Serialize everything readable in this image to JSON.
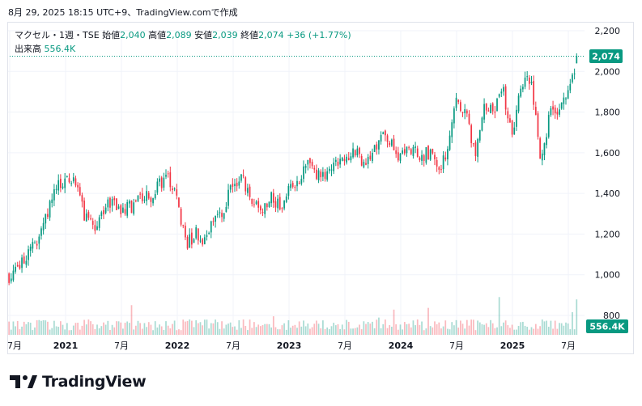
{
  "caption": "8月 29, 2025 18:15 UTC+9、TradingView.comで作成",
  "legend": {
    "symbol": "マクセル・1週・TSE",
    "open_label": "始値",
    "open": "2,040",
    "high_label": "高値",
    "high": "2,089",
    "low_label": "安値",
    "low": "2,039",
    "close_label": "終値",
    "close": "2,074",
    "change": "+36 (+1.77%)",
    "volume_label": "出来高",
    "volume": "556.4K"
  },
  "brand": {
    "name": "TradingView"
  },
  "colors": {
    "up": "#089981",
    "down": "#f23645",
    "text": "#131722",
    "grid": "#f0f3fa"
  },
  "chart_data": {
    "type": "candlestick",
    "y_axis": {
      "ticks": [
        "2,200",
        "2,000",
        "1,800",
        "1,600",
        "1,400",
        "1,200",
        "1,000",
        "800"
      ],
      "range": [
        800,
        2200
      ]
    },
    "x_axis": {
      "labels": [
        "7月",
        "2021",
        "7月",
        "2022",
        "7月",
        "2023",
        "7月",
        "2024",
        "7月",
        "2025",
        "7月"
      ]
    },
    "last_price_label": "2,074",
    "last_volume_label": "556.4K",
    "close_anchors": [
      [
        "2020-06",
        1010
      ],
      [
        "2020-07",
        960
      ],
      [
        "2020-08",
        1050
      ],
      [
        "2020-09",
        1100
      ],
      [
        "2020-10",
        1180
      ],
      [
        "2020-11",
        1300
      ],
      [
        "2020-12",
        1420
      ],
      [
        "2021-01",
        1480
      ],
      [
        "2021-02",
        1470
      ],
      [
        "2021-03",
        1290
      ],
      [
        "2021-04",
        1240
      ],
      [
        "2021-05",
        1300
      ],
      [
        "2021-06",
        1380
      ],
      [
        "2021-07",
        1320
      ],
      [
        "2021-08",
        1330
      ],
      [
        "2021-09",
        1400
      ],
      [
        "2021-10",
        1370
      ],
      [
        "2021-11",
        1450
      ],
      [
        "2021-12",
        1480
      ],
      [
        "2022-01",
        1360
      ],
      [
        "2022-02",
        1150
      ],
      [
        "2022-03",
        1200
      ],
      [
        "2022-04",
        1160
      ],
      [
        "2022-05",
        1310
      ],
      [
        "2022-06",
        1320
      ],
      [
        "2022-07",
        1460
      ],
      [
        "2022-08",
        1470
      ],
      [
        "2022-09",
        1380
      ],
      [
        "2022-10",
        1290
      ],
      [
        "2022-11",
        1410
      ],
      [
        "2022-12",
        1330
      ],
      [
        "2023-01",
        1420
      ],
      [
        "2023-02",
        1450
      ],
      [
        "2023-03",
        1580
      ],
      [
        "2023-04",
        1490
      ],
      [
        "2023-05",
        1470
      ],
      [
        "2023-06",
        1530
      ],
      [
        "2023-07",
        1570
      ],
      [
        "2023-08",
        1610
      ],
      [
        "2023-09",
        1540
      ],
      [
        "2023-10",
        1600
      ],
      [
        "2023-11",
        1680
      ],
      [
        "2023-12",
        1650
      ],
      [
        "2024-01",
        1570
      ],
      [
        "2024-02",
        1620
      ],
      [
        "2024-03",
        1580
      ],
      [
        "2024-04",
        1600
      ],
      [
        "2024-05",
        1530
      ],
      [
        "2024-06",
        1580
      ],
      [
        "2024-07",
        1860
      ],
      [
        "2024-08",
        1780
      ],
      [
        "2024-09",
        1600
      ],
      [
        "2024-10",
        1850
      ],
      [
        "2024-11",
        1800
      ],
      [
        "2024-12",
        1900
      ],
      [
        "2025-01",
        1700
      ],
      [
        "2025-02",
        1930
      ],
      [
        "2025-03",
        1980
      ],
      [
        "2025-04",
        1560
      ],
      [
        "2025-05",
        1780
      ],
      [
        "2025-06",
        1820
      ],
      [
        "2025-07",
        1900
      ],
      [
        "2025-08",
        2074
      ]
    ]
  }
}
